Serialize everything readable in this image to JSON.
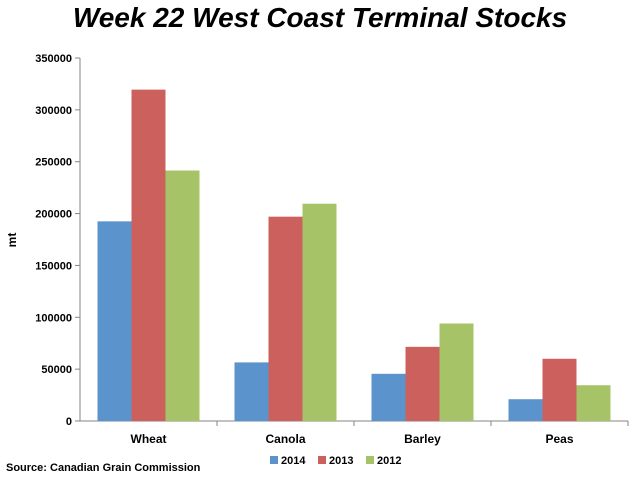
{
  "chart_data": {
    "type": "bar",
    "title": "Week 22 West Coast Terminal Stocks",
    "ylabel": "mt",
    "xlabel": "",
    "categories": [
      "Wheat",
      "Canola",
      "Barley",
      "Peas"
    ],
    "series": [
      {
        "name": "2014",
        "color": "#5b93cc",
        "values": [
          192500,
          56500,
          45500,
          21000
        ]
      },
      {
        "name": "2013",
        "color": "#cc605c",
        "values": [
          319500,
          197000,
          71500,
          60000
        ]
      },
      {
        "name": "2012",
        "color": "#a6c467",
        "values": [
          241500,
          209500,
          94000,
          34500
        ]
      }
    ],
    "ylim": [
      0,
      350000
    ],
    "yticks": [
      "0",
      "50000",
      "100000",
      "150000",
      "200000",
      "250000",
      "300000",
      "350000"
    ],
    "grid": false,
    "legend_position": "bottom",
    "source": "Source: Canadian Grain Commission"
  }
}
